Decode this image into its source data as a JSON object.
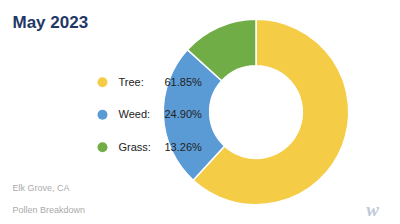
{
  "chart_data": {
    "type": "pie",
    "title": "May 2023",
    "categories": [
      "Tree:",
      "Weed:",
      "Grass:"
    ],
    "values": [
      61.85,
      24.9,
      13.26
    ],
    "value_labels": [
      "61.85%",
      "24.90%",
      "13.26%"
    ],
    "colors": [
      "#F5CC45",
      "#5B9BD5",
      "#70AD47"
    ],
    "legend": "left",
    "annotations": [
      "Elk Grove, CA",
      "Pollen Breakdown",
      "w"
    ]
  }
}
